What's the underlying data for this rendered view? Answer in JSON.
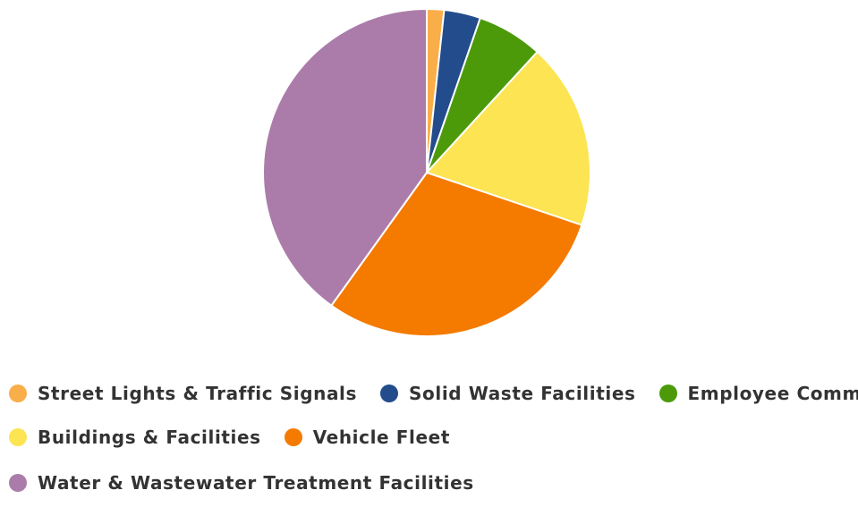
{
  "chart_data": {
    "type": "pie",
    "title": "",
    "start_angle_deg": 0,
    "slices": [
      {
        "label": "Street Lights & Traffic Signals",
        "value": 1.7,
        "color": "#F9AE49"
      },
      {
        "label": "Solid Waste Facilities",
        "value": 3.6,
        "color": "#234C8C"
      },
      {
        "label": "Employee Commute",
        "value": 6.5,
        "color": "#4C9A0A"
      },
      {
        "label": "Buildings & Facilities",
        "value": 18.4,
        "color": "#FCE453"
      },
      {
        "label": "Vehicle Fleet",
        "value": 29.7,
        "color": "#F47A00"
      },
      {
        "label": "Water & Wastewater Treatment Facilities",
        "value": 40.1,
        "color": "#AB7CA9"
      }
    ],
    "legend_position": "bottom"
  }
}
